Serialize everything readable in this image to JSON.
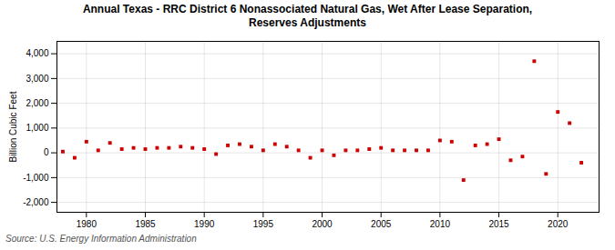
{
  "chart_data": {
    "type": "scatter",
    "title": "Annual Texas - RRC District 6 Nonassociated Natural Gas, Wet After Lease Separation,\nReserves Adjustments",
    "ylabel": "Billion Cubic Feet",
    "annotation": "Source: U.S. Energy Information Administration",
    "color": "#cc0000",
    "marker": "square",
    "grid": true,
    "xlim": [
      1977.5,
      2023.5
    ],
    "ylim": [
      -2400,
      4500
    ],
    "xticks": [
      1980,
      1985,
      1990,
      1995,
      2000,
      2005,
      2010,
      2015,
      2020
    ],
    "yticks": [
      {
        "value": -2000,
        "label": "-2,000"
      },
      {
        "value": -1000,
        "label": "-1,000"
      },
      0,
      {
        "value": 1000,
        "label": "1,000"
      },
      {
        "value": 2000,
        "label": "2,000"
      },
      {
        "value": 3000,
        "label": "3,000"
      },
      {
        "value": 4000,
        "label": "4,000"
      }
    ],
    "x": [
      1978,
      1979,
      1980,
      1981,
      1982,
      1983,
      1984,
      1985,
      1986,
      1987,
      1988,
      1989,
      1990,
      1991,
      1992,
      1993,
      1994,
      1995,
      1996,
      1997,
      1998,
      1999,
      2000,
      2001,
      2002,
      2003,
      2004,
      2005,
      2006,
      2007,
      2008,
      2009,
      2010,
      2011,
      2012,
      2013,
      2014,
      2015,
      2016,
      2017,
      2018,
      2019,
      2020,
      2021,
      2022
    ],
    "values": [
      50,
      -200,
      450,
      100,
      400,
      150,
      200,
      150,
      200,
      200,
      250,
      200,
      150,
      -50,
      300,
      350,
      250,
      100,
      350,
      250,
      100,
      -200,
      100,
      -100,
      100,
      100,
      150,
      200,
      100,
      100,
      100,
      100,
      500,
      450,
      -1100,
      300,
      350,
      550,
      -300,
      -150,
      3700,
      -850,
      1650,
      1200,
      -400
    ]
  }
}
